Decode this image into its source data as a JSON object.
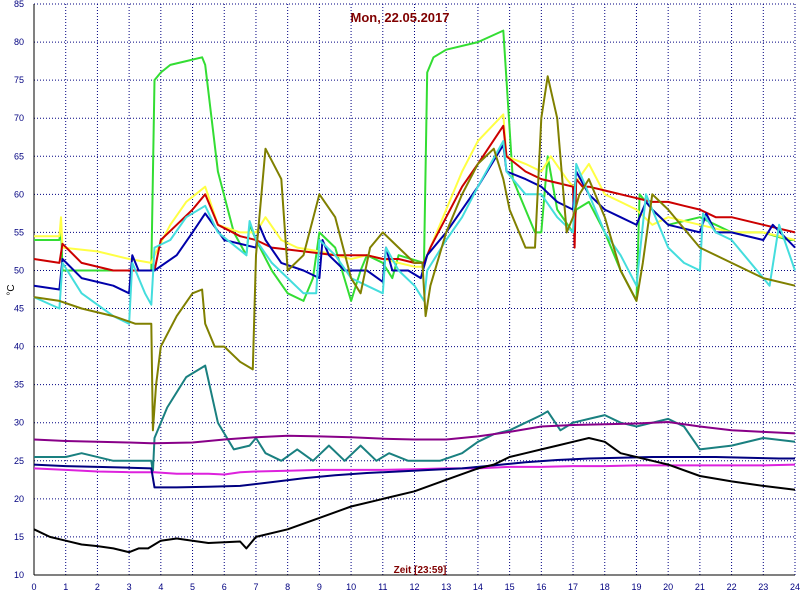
{
  "chart_data": {
    "type": "line",
    "title": "Mon, 22.05.2017",
    "xlabel": "Zeit [23:59]",
    "ylabel": "°C",
    "xlim": [
      0,
      24
    ],
    "ylim": [
      10,
      85
    ],
    "x_ticks": [
      0,
      1,
      2,
      3,
      4,
      5,
      6,
      7,
      8,
      9,
      10,
      11,
      12,
      13,
      14,
      15,
      16,
      17,
      18,
      19,
      20,
      21,
      22,
      23,
      24
    ],
    "y_ticks": [
      10,
      15,
      20,
      25,
      30,
      35,
      40,
      45,
      50,
      55,
      60,
      65,
      70,
      75,
      80,
      85
    ],
    "grid": true,
    "legend": "none",
    "colors": {
      "background": "#ffffff",
      "grid": "#000080",
      "axis": "#000000",
      "tick_text": "#000080",
      "title_text": "#800000"
    },
    "series": [
      {
        "color": "#33dd33",
        "x": [
          0,
          0.8,
          0.85,
          0.9,
          3.7,
          3.8,
          4.0,
          4.3,
          4.8,
          5.3,
          5.4,
          5.8,
          6.3,
          6.7,
          6.8,
          7.0,
          7.5,
          8.0,
          8.5,
          8.8,
          9.0,
          9.5,
          10.0,
          10.3,
          10.5,
          11.0,
          11.3,
          11.5,
          12.3,
          12.4,
          12.6,
          13.0,
          14.0,
          14.8,
          14.9,
          15.1,
          15.8,
          16.0,
          16.2,
          16.5,
          17.0,
          17.1,
          17.5,
          18.0,
          18.5,
          19.0,
          19.1,
          19.5,
          20.0,
          21.0,
          21.5,
          22.0,
          23.0,
          23.8,
          24.0
        ],
        "y": [
          54,
          54,
          56,
          50,
          50,
          75,
          76,
          77,
          77.5,
          78,
          77,
          63,
          55,
          52,
          56,
          54,
          50,
          47,
          46,
          49,
          55,
          53,
          46,
          50,
          52,
          51,
          49,
          52,
          51,
          76,
          78,
          79,
          80,
          81.5,
          75,
          62,
          55,
          55,
          65,
          58,
          55,
          58,
          59,
          55,
          50,
          46,
          60,
          58,
          56,
          57,
          56,
          55,
          55,
          54,
          54
        ]
      },
      {
        "color": "#ffff44",
        "x": [
          0,
          0.8,
          0.85,
          0.9,
          2.0,
          3.0,
          3.7,
          3.8,
          4.3,
          4.8,
          5.4,
          5.8,
          6.5,
          7.0,
          7.3,
          7.8,
          8.3,
          9.0,
          9.5,
          10.0,
          10.5,
          11.0,
          11.5,
          12.0,
          12.3,
          12.4,
          13.0,
          13.5,
          14.0,
          14.8,
          14.9,
          15.5,
          16.0,
          16.3,
          16.8,
          17.0,
          17.5,
          18.0,
          18.5,
          19.0,
          19.5,
          20.0,
          21.0,
          22.0,
          23.0,
          24.0
        ],
        "y": [
          54.5,
          54.5,
          57,
          53,
          52.5,
          51.5,
          51,
          52,
          56,
          59,
          61,
          56,
          55,
          55,
          57,
          54,
          53,
          52.5,
          52,
          51.5,
          52,
          51.5,
          51,
          50.5,
          50.5,
          52,
          58,
          63,
          67,
          70.5,
          65,
          64,
          63,
          65,
          62,
          61,
          64,
          60,
          59,
          58,
          56,
          57,
          56,
          55,
          55,
          54
        ]
      },
      {
        "color": "#cc0000",
        "x": [
          0,
          0.8,
          0.9,
          1.5,
          2.5,
          3.5,
          3.8,
          4.0,
          4.5,
          5.0,
          5.4,
          5.8,
          6.5,
          7.0,
          7.5,
          8.5,
          9.5,
          10.5,
          11.0,
          11.5,
          12.0,
          12.3,
          12.5,
          13.0,
          13.5,
          14.0,
          14.8,
          14.9,
          15.5,
          16.0,
          16.5,
          17.0,
          17.05,
          17.1,
          17.3,
          17.5,
          18.0,
          19.0,
          19.5,
          20.0,
          20.5,
          21.0,
          21.5,
          22.0,
          23.0,
          24.0
        ],
        "y": [
          51.5,
          51,
          53.5,
          51,
          50,
          50,
          50,
          54,
          56,
          58,
          60,
          56,
          54.5,
          54,
          53,
          52.5,
          52,
          52,
          51.5,
          51.5,
          51,
          51,
          53,
          57,
          61,
          64,
          69,
          65,
          63,
          62,
          61.5,
          61,
          53,
          62,
          61,
          61,
          60.5,
          59.5,
          59,
          59,
          58.5,
          58,
          57,
          57,
          56,
          55
        ]
      },
      {
        "color": "#0000aa",
        "x": [
          0,
          0.8,
          0.9,
          1.5,
          2.5,
          3.0,
          3.1,
          3.3,
          3.7,
          3.8,
          4.5,
          5.0,
          5.4,
          6.0,
          7.0,
          7.1,
          7.3,
          7.8,
          8.5,
          9.0,
          9.1,
          9.3,
          9.8,
          10.5,
          11.0,
          11.1,
          11.3,
          11.8,
          12.2,
          12.4,
          13.0,
          13.5,
          14.0,
          14.8,
          14.9,
          15.5,
          16.0,
          16.5,
          17.0,
          17.1,
          17.5,
          18.0,
          18.5,
          19.0,
          19.3,
          19.5,
          20.0,
          21.0,
          21.2,
          21.5,
          22.0,
          23.0,
          23.3,
          24.0
        ],
        "y": [
          48,
          47.5,
          51.5,
          49,
          48,
          47,
          52,
          50,
          50,
          50,
          52,
          55,
          57.5,
          54,
          53,
          56,
          54,
          51,
          50,
          49,
          54,
          52,
          50,
          50,
          48.5,
          53,
          50,
          50,
          49,
          52,
          55,
          58,
          61,
          66.5,
          63,
          62,
          61,
          59,
          58,
          63,
          60,
          58,
          57,
          56,
          59,
          58,
          56,
          55,
          57.5,
          55,
          55,
          54,
          56,
          53
        ]
      },
      {
        "color": "#44dddd",
        "x": [
          0,
          0.8,
          0.9,
          1.5,
          2.5,
          3.0,
          3.1,
          3.5,
          3.7,
          3.8,
          4.3,
          4.8,
          5.4,
          5.8,
          6.4,
          6.7,
          6.8,
          7.0,
          7.5,
          8.0,
          8.5,
          8.9,
          9.0,
          9.5,
          10.0,
          10.5,
          11.0,
          11.1,
          11.5,
          12.0,
          12.3,
          12.4,
          13.0,
          13.5,
          14.0,
          14.8,
          14.9,
          15.5,
          16.0,
          16.5,
          17.0,
          17.1,
          17.5,
          18.0,
          18.5,
          19.0,
          19.3,
          19.5,
          20.0,
          20.5,
          21.0,
          21.1,
          21.5,
          22.0,
          23.0,
          23.2,
          23.5,
          24.0
        ],
        "y": [
          46.5,
          45,
          51,
          47,
          44,
          43,
          51,
          47,
          45.5,
          53,
          54,
          57,
          58.5,
          55,
          53,
          52,
          56.5,
          54,
          51,
          49,
          47,
          47,
          54,
          52,
          49,
          48,
          47,
          53,
          50,
          48,
          46,
          50,
          54,
          57,
          61,
          67,
          63,
          60,
          60,
          57,
          55,
          64,
          60,
          55,
          52,
          48,
          60,
          58,
          53,
          51,
          50,
          57.5,
          55,
          54,
          49,
          48,
          56,
          50
        ]
      },
      {
        "color": "#808000",
        "x": [
          0,
          0.8,
          1.5,
          2.5,
          3.2,
          3.7,
          3.75,
          3.85,
          4.0,
          4.5,
          5.0,
          5.3,
          5.4,
          5.7,
          6.0,
          6.5,
          6.9,
          7.0,
          7.3,
          7.8,
          8.0,
          8.5,
          9.0,
          9.5,
          10.0,
          10.3,
          10.6,
          11.0,
          11.5,
          12.0,
          12.25,
          12.35,
          12.5,
          13.0,
          13.5,
          14.0,
          14.5,
          14.8,
          15.0,
          15.5,
          15.8,
          16.0,
          16.2,
          16.5,
          16.8,
          17.0,
          17.2,
          17.5,
          18.0,
          18.5,
          19.0,
          19.2,
          19.5,
          20.0,
          21.0,
          22.0,
          23.0,
          24.0
        ],
        "y": [
          46.5,
          46,
          45,
          44,
          43,
          43,
          29,
          35,
          40,
          44,
          47,
          47.5,
          43,
          40,
          40,
          38,
          37,
          52,
          66,
          62,
          50,
          52,
          60,
          57,
          49,
          47,
          53,
          55,
          53,
          51,
          51,
          44,
          48,
          55,
          60,
          64,
          66,
          62,
          58,
          53,
          53,
          70,
          75.5,
          70,
          55,
          57,
          60,
          62,
          57,
          50,
          46,
          51,
          60,
          58,
          53,
          51,
          49,
          48
        ]
      },
      {
        "color": "#1a8080",
        "x": [
          0,
          1.0,
          1.5,
          2.5,
          3.7,
          3.75,
          3.8,
          4.2,
          4.8,
          5.4,
          5.8,
          6.3,
          6.8,
          7.0,
          7.3,
          7.8,
          8.3,
          8.8,
          9.3,
          9.8,
          10.3,
          10.8,
          11.2,
          11.8,
          12.3,
          12.8,
          13.5,
          14.0,
          14.5,
          15.0,
          15.5,
          16.0,
          16.2,
          16.6,
          17.0,
          17.5,
          18.0,
          18.5,
          19.0,
          19.5,
          20.0,
          20.5,
          21.0,
          22.0,
          23.0,
          24.0
        ],
        "y": [
          25.5,
          25.5,
          26,
          25,
          25,
          23.5,
          28,
          32,
          36,
          37.5,
          30,
          26.5,
          27,
          28,
          26,
          25,
          26.5,
          25,
          27,
          25,
          27,
          25,
          26,
          25,
          25,
          25,
          26,
          27.5,
          28.5,
          29,
          30,
          31,
          31.5,
          29,
          30,
          30.5,
          31,
          30,
          29.5,
          30,
          30.5,
          29.5,
          26.5,
          27,
          28,
          27.5
        ]
      },
      {
        "color": "#880088",
        "x": [
          0,
          1,
          2,
          3,
          3.7,
          3.8,
          5.0,
          6.0,
          7.0,
          8.0,
          9.0,
          10.0,
          11.0,
          12.0,
          13.0,
          14.0,
          15.0,
          16.0,
          17.0,
          18.0,
          19.0,
          20.0,
          21.0,
          22.0,
          23.0,
          24.0
        ],
        "y": [
          27.8,
          27.6,
          27.5,
          27.4,
          27.3,
          27.3,
          27.4,
          27.8,
          28.1,
          28.3,
          28.2,
          28.1,
          27.9,
          27.8,
          27.8,
          28.2,
          28.8,
          29.5,
          29.7,
          29.8,
          29.9,
          30.1,
          29.5,
          29.0,
          28.8,
          28.6
        ]
      },
      {
        "color": "#dd22dd",
        "x": [
          0,
          1,
          2,
          3,
          3.8,
          4.5,
          5.5,
          6.0,
          6.5,
          7.0,
          8.0,
          9.0,
          10.0,
          11.0,
          12.0,
          13.0,
          14.0,
          15.0,
          16.0,
          17.0,
          18.0,
          19.0,
          20.0,
          21.0,
          22.0,
          23.0,
          24.0
        ],
        "y": [
          24,
          23.8,
          23.6,
          23.5,
          23.5,
          23.3,
          23.3,
          23.2,
          23.5,
          23.6,
          23.7,
          23.8,
          23.8,
          23.8,
          23.9,
          24.0,
          24.0,
          24.2,
          24.2,
          24.3,
          24.3,
          24.4,
          24.4,
          24.4,
          24.4,
          24.4,
          24.5
        ]
      },
      {
        "color": "#000080",
        "x": [
          0,
          1,
          2,
          3,
          3.7,
          3.8,
          4.5,
          5.5,
          6.5,
          7.5,
          8.5,
          9.5,
          10.5,
          11.5,
          12.5,
          13.5,
          14.5,
          15.5,
          16.5,
          17.5,
          18.5,
          19.5,
          20.5,
          21.5,
          22.5,
          23.5,
          24.0
        ],
        "y": [
          24.5,
          24.3,
          24.2,
          24.1,
          24.0,
          21.5,
          21.5,
          21.6,
          21.7,
          22.2,
          22.7,
          23.1,
          23.4,
          23.6,
          23.8,
          24.0,
          24.4,
          24.8,
          25.1,
          25.3,
          25.4,
          25.5,
          25.5,
          25.5,
          25.4,
          25.3,
          25.3
        ]
      },
      {
        "color": "#000000",
        "x": [
          0,
          0.5,
          1.0,
          1.5,
          2.0,
          2.5,
          3.0,
          3.3,
          3.6,
          3.8,
          4.0,
          4.5,
          5.0,
          5.5,
          6.0,
          6.5,
          6.7,
          7.0,
          8.0,
          9.0,
          10.0,
          11.0,
          12.0,
          13.0,
          14.0,
          14.5,
          15.0,
          15.5,
          16.0,
          16.5,
          17.0,
          17.5,
          18.0,
          18.5,
          19.0,
          19.5,
          20.0,
          21.0,
          22.0,
          23.0,
          24.0
        ],
        "y": [
          16,
          15,
          14.5,
          14,
          13.8,
          13.5,
          13,
          13.5,
          13.5,
          14,
          14.5,
          14.8,
          14.5,
          14.2,
          14.3,
          14.4,
          13.5,
          15,
          16,
          17.5,
          19,
          20,
          21,
          22.5,
          24,
          24.5,
          25.5,
          26,
          26.5,
          27,
          27.5,
          28,
          27.5,
          26,
          25.5,
          25,
          24.5,
          23,
          22.3,
          21.7,
          21.2
        ]
      }
    ]
  }
}
